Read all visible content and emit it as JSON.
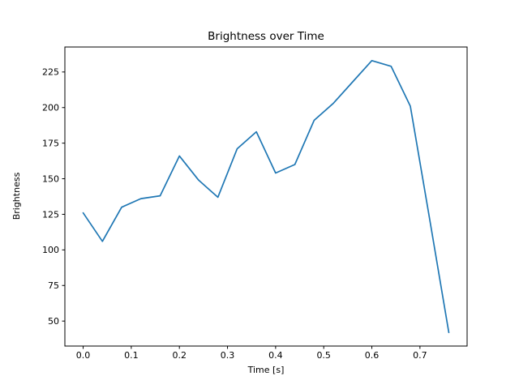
{
  "chart_data": {
    "type": "line",
    "title": "Brightness over Time",
    "xlabel": "Time [s]",
    "ylabel": "Brightness",
    "x": [
      0.0,
      0.04,
      0.08,
      0.12,
      0.16,
      0.2,
      0.24,
      0.28,
      0.32,
      0.36,
      0.4,
      0.44,
      0.48,
      0.52,
      0.56,
      0.6,
      0.64,
      0.68,
      0.72,
      0.76
    ],
    "y": [
      126,
      106,
      130,
      136,
      138,
      166,
      149,
      137,
      171,
      183,
      154,
      160,
      191,
      203,
      218,
      233,
      229,
      201,
      122,
      42
    ],
    "xlim": [
      -0.038,
      0.798
    ],
    "ylim": [
      32.45,
      242.55
    ],
    "xticks": [
      0.0,
      0.1,
      0.2,
      0.3,
      0.4,
      0.5,
      0.6,
      0.7
    ],
    "yticks": [
      50,
      75,
      100,
      125,
      150,
      175,
      200,
      225
    ],
    "line_color": "#1f77b4",
    "axis_color": "#000000",
    "grid": false,
    "legend_position": "none"
  }
}
